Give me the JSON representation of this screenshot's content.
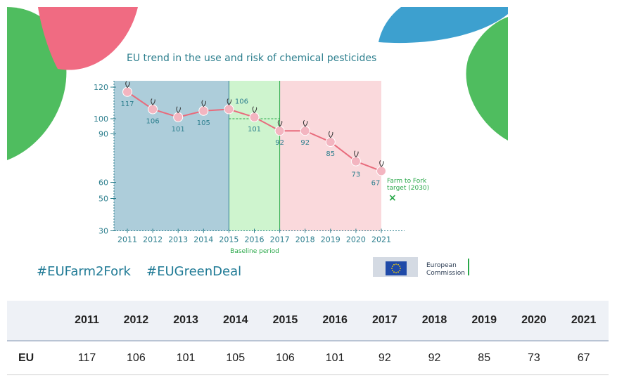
{
  "colors": {
    "title": "#2d7f8e",
    "line": "#e86b7c",
    "shade_blue": "#9fc4d3",
    "shade_green": "#c9f3c9",
    "shade_pink": "#f9d5d8",
    "target": "#2aa84a",
    "hashtag": "#1f7a95",
    "leaf_pink": "#f06b82",
    "leaf_green": "#4fbd5f",
    "leaf_blue": "#3da0cf"
  },
  "chart_data": {
    "type": "line",
    "title": "EU trend in the use and risk of chemical pesticides",
    "categories": [
      "2011",
      "2012",
      "2013",
      "2014",
      "2015",
      "2016",
      "2017",
      "2018",
      "2019",
      "2020",
      "2021"
    ],
    "values": [
      117,
      106,
      101,
      105,
      106,
      101,
      92,
      92,
      85,
      73,
      67
    ],
    "value_labels": [
      "117",
      "106",
      "101",
      "105",
      "106",
      "101",
      "92",
      "92",
      "85",
      "73",
      "67"
    ],
    "y_ticks": [
      120,
      100,
      90,
      60,
      50,
      30
    ],
    "y_tick_labels": [
      "120",
      "100",
      "90",
      "60",
      "50",
      "30"
    ],
    "ylim": [
      30,
      125
    ],
    "baseline_label": "Baseline period",
    "baseline_range": [
      "2015",
      "2017"
    ],
    "baseline_level": 100,
    "target_label_line1": "Farm to Fork",
    "target_label_line2": "target (2030)",
    "target_marker": "×",
    "xlabel": "",
    "ylabel": ""
  },
  "footer": {
    "hashtag1": "#EUFarm2Fork",
    "hashtag2": "#EUGreenDeal",
    "logo_line1": "European",
    "logo_line2": "Commission"
  },
  "table": {
    "years": [
      "2011",
      "2012",
      "2013",
      "2014",
      "2015",
      "2016",
      "2017",
      "2018",
      "2019",
      "2020",
      "2021"
    ],
    "row_label": "EU",
    "row_values": [
      "117",
      "106",
      "101",
      "105",
      "106",
      "101",
      "92",
      "92",
      "85",
      "73",
      "67"
    ]
  }
}
